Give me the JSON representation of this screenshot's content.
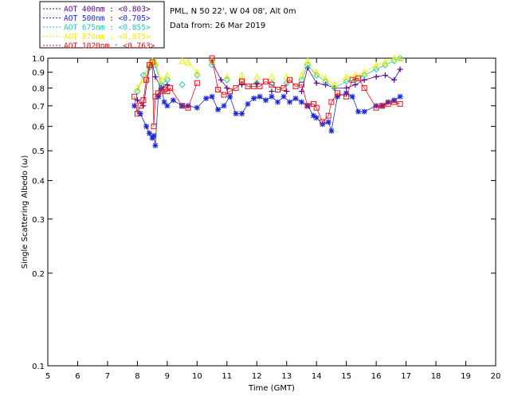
{
  "chart_data": {
    "type": "scatter",
    "ylabel": "Single Scattering Albedo (ω)",
    "xlabel": "Time (GMT)",
    "info_lines": [
      "PML, N 50 22', W 04 08', Alt 0m",
      "Data from: 26 Mar 2019"
    ],
    "xlim": [
      5,
      20
    ],
    "ylim": [
      0.1,
      1.0
    ],
    "yscale": "log",
    "x_ticks": [
      5,
      6,
      7,
      8,
      9,
      10,
      11,
      12,
      13,
      14,
      15,
      16,
      17,
      18,
      19,
      20
    ],
    "y_ticks": [
      {
        "value": 0.1,
        "label": "0.1"
      },
      {
        "value": 0.2,
        "label": "0.2"
      },
      {
        "value": 0.3,
        "label": "0.3"
      },
      {
        "value": 0.4,
        "label": "0.4"
      },
      {
        "value": 0.5,
        "label": "0.5"
      },
      {
        "value": 0.6,
        "label": "0.6"
      },
      {
        "value": 0.7,
        "label": "0.7"
      },
      {
        "value": 0.8,
        "label": "0.8"
      },
      {
        "value": 0.9,
        "label": "0.9"
      },
      {
        "value": 1.0,
        "label": "1.0"
      }
    ],
    "series": [
      {
        "name": "AOT  400nm : <0.803>",
        "color": "#5b008a",
        "marker": "plus",
        "x": [
          8.0,
          8.2,
          8.4,
          8.5,
          8.6,
          8.8,
          9.0,
          10.5,
          10.8,
          11.0,
          11.5,
          12.0,
          12.5,
          13.0,
          13.5,
          13.7,
          14.0,
          14.3,
          14.6,
          15.0,
          15.3,
          15.6,
          16.0,
          16.3,
          16.6,
          16.8
        ],
        "y": [
          0.73,
          0.7,
          0.93,
          0.96,
          0.87,
          0.8,
          0.82,
          0.97,
          0.85,
          0.8,
          0.82,
          0.83,
          0.78,
          0.78,
          0.78,
          0.93,
          0.83,
          0.82,
          0.8,
          0.8,
          0.82,
          0.85,
          0.87,
          0.88,
          0.85,
          0.92
        ]
      },
      {
        "name": "AOT  500nm : <0.705>",
        "color": "#1a28d8",
        "marker": "asterisk",
        "x": [
          7.9,
          8.1,
          8.3,
          8.4,
          8.5,
          8.55,
          8.6,
          8.7,
          8.8,
          8.9,
          9.0,
          9.2,
          9.5,
          9.7,
          10.0,
          10.3,
          10.5,
          10.7,
          10.9,
          11.1,
          11.3,
          11.5,
          11.7,
          11.9,
          12.1,
          12.3,
          12.5,
          12.7,
          12.9,
          13.1,
          13.3,
          13.5,
          13.7,
          13.9,
          14.0,
          14.2,
          14.4,
          14.5,
          14.7,
          15.0,
          15.2,
          15.4,
          15.6,
          16.0,
          16.2,
          16.4,
          16.6,
          16.8
        ],
        "y": [
          0.7,
          0.66,
          0.6,
          0.57,
          0.55,
          0.56,
          0.52,
          0.75,
          0.8,
          0.72,
          0.7,
          0.73,
          0.7,
          0.7,
          0.69,
          0.74,
          0.75,
          0.68,
          0.7,
          0.75,
          0.66,
          0.66,
          0.71,
          0.74,
          0.75,
          0.73,
          0.75,
          0.72,
          0.75,
          0.72,
          0.74,
          0.72,
          0.7,
          0.65,
          0.64,
          0.61,
          0.62,
          0.58,
          0.75,
          0.77,
          0.75,
          0.67,
          0.67,
          0.7,
          0.7,
          0.72,
          0.73,
          0.75
        ]
      },
      {
        "name": "AOT  675nm : <0.855>",
        "color": "#22c9b4",
        "marker": "diamond",
        "x": [
          8.0,
          8.2,
          8.4,
          8.5,
          8.6,
          8.8,
          9.0,
          9.5,
          10.0,
          10.5,
          11.0,
          11.5,
          12.0,
          12.5,
          13.0,
          13.5,
          13.7,
          14.0,
          14.3,
          14.6,
          15.0,
          15.3,
          15.6,
          16.0,
          16.3,
          16.6,
          16.8
        ],
        "y": [
          0.78,
          0.88,
          0.93,
          0.98,
          0.95,
          0.82,
          0.85,
          0.82,
          0.88,
          0.95,
          0.85,
          0.85,
          0.83,
          0.83,
          0.83,
          0.85,
          0.95,
          0.88,
          0.84,
          0.8,
          0.84,
          0.85,
          0.88,
          0.92,
          0.95,
          0.98,
          1.0
        ]
      },
      {
        "name": "AOT  870nm : <0.875>",
        "color": "#f0f000",
        "marker": "triangle",
        "x": [
          8.0,
          8.2,
          8.4,
          8.5,
          8.6,
          8.8,
          9.0,
          9.5,
          9.7,
          10.0,
          10.5,
          11.0,
          11.5,
          12.0,
          12.5,
          13.0,
          13.5,
          13.7,
          14.0,
          14.3,
          14.6,
          15.0,
          15.3,
          15.6,
          16.0,
          16.3,
          16.6,
          16.8
        ],
        "y": [
          0.8,
          0.85,
          0.95,
          0.98,
          0.97,
          0.85,
          0.88,
          0.98,
          0.97,
          0.9,
          0.98,
          0.87,
          0.88,
          0.87,
          0.87,
          0.87,
          0.88,
          0.98,
          0.9,
          0.86,
          0.82,
          0.87,
          0.88,
          0.9,
          0.95,
          0.97,
          1.0,
          1.0
        ]
      },
      {
        "name": "AOT 1020nm : <0.763>",
        "color": "#e8101a",
        "marker": "square",
        "x": [
          7.9,
          8.0,
          8.1,
          8.2,
          8.3,
          8.4,
          8.5,
          8.55,
          8.6,
          8.7,
          8.8,
          8.9,
          9.0,
          9.1,
          9.5,
          9.7,
          10.0,
          10.5,
          10.7,
          10.9,
          11.1,
          11.3,
          11.5,
          11.7,
          11.9,
          12.1,
          12.3,
          12.5,
          12.7,
          12.9,
          13.1,
          13.3,
          13.5,
          13.7,
          13.9,
          14.0,
          14.2,
          14.4,
          14.5,
          14.7,
          15.0,
          15.2,
          15.4,
          15.6,
          16.0,
          16.2,
          16.4,
          16.6,
          16.8
        ],
        "y": [
          0.75,
          0.66,
          0.7,
          0.73,
          0.85,
          0.95,
          0.97,
          0.6,
          0.75,
          0.77,
          0.78,
          0.79,
          0.78,
          0.8,
          0.7,
          0.69,
          0.83,
          1.0,
          0.79,
          0.76,
          0.78,
          0.8,
          0.84,
          0.81,
          0.81,
          0.81,
          0.84,
          0.82,
          0.79,
          0.8,
          0.85,
          0.81,
          0.82,
          0.7,
          0.71,
          0.69,
          0.62,
          0.65,
          0.72,
          0.77,
          0.75,
          0.85,
          0.86,
          0.8,
          0.69,
          0.7,
          0.71,
          0.72,
          0.71
        ]
      }
    ]
  }
}
